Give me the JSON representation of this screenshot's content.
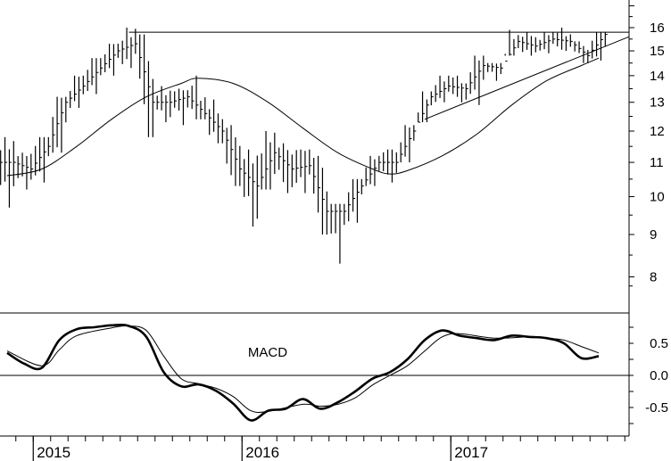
{
  "chart_data": [
    {
      "type": "ohlc",
      "panel": "price",
      "y_scale": "log",
      "ylim": [
        7.6,
        17.2
      ],
      "y_ticks": [
        "16",
        "15",
        "14",
        "13",
        "12",
        "11",
        "10",
        "9",
        "8"
      ],
      "x_year_labels": [
        "2015",
        "2016",
        "2017"
      ],
      "x_range_months": [
        "2014-11",
        "2017-12"
      ],
      "bars_monthly_approx": [
        {
          "m": "2014-11",
          "h": 11.8,
          "l": 9.7,
          "c": 11.0
        },
        {
          "m": "2014-12",
          "h": 11.3,
          "l": 10.2,
          "c": 10.8
        },
        {
          "m": "2015-01",
          "h": 11.8,
          "l": 10.4,
          "c": 11.5
        },
        {
          "m": "2015-02",
          "h": 13.2,
          "l": 11.3,
          "c": 13.0
        },
        {
          "m": "2015-03",
          "h": 14.0,
          "l": 12.8,
          "c": 13.6
        },
        {
          "m": "2015-04",
          "h": 14.7,
          "l": 13.3,
          "c": 14.3
        },
        {
          "m": "2015-05",
          "h": 15.3,
          "l": 14.0,
          "c": 15.0
        },
        {
          "m": "2015-06",
          "h": 16.0,
          "l": 14.3,
          "c": 15.3
        },
        {
          "m": "2015-07",
          "h": 15.7,
          "l": 11.8,
          "c": 13.0
        },
        {
          "m": "2015-08",
          "h": 13.6,
          "l": 12.3,
          "c": 13.0
        },
        {
          "m": "2015-09",
          "h": 13.5,
          "l": 12.2,
          "c": 13.2
        },
        {
          "m": "2015-10",
          "h": 14.0,
          "l": 12.4,
          "c": 12.6
        },
        {
          "m": "2015-11",
          "h": 13.1,
          "l": 11.6,
          "c": 12.0
        },
        {
          "m": "2015-12",
          "h": 12.2,
          "l": 10.3,
          "c": 10.8
        },
        {
          "m": "2016-01",
          "h": 11.4,
          "l": 9.2,
          "c": 10.3
        },
        {
          "m": "2016-02",
          "h": 12.0,
          "l": 10.2,
          "c": 11.3
        },
        {
          "m": "2016-03",
          "h": 11.6,
          "l": 10.1,
          "c": 10.8
        },
        {
          "m": "2016-04",
          "h": 11.4,
          "l": 10.1,
          "c": 10.9
        },
        {
          "m": "2016-05",
          "h": 11.2,
          "l": 9.0,
          "c": 9.6
        },
        {
          "m": "2016-06",
          "h": 9.8,
          "l": 8.3,
          "c": 9.6
        },
        {
          "m": "2016-07",
          "h": 10.5,
          "l": 9.3,
          "c": 10.3
        },
        {
          "m": "2016-08",
          "h": 11.2,
          "l": 10.3,
          "c": 11.0
        },
        {
          "m": "2016-09",
          "h": 11.4,
          "l": 10.4,
          "c": 11.0
        },
        {
          "m": "2016-10",
          "h": 12.2,
          "l": 11.0,
          "c": 12.0
        },
        {
          "m": "2016-11",
          "h": 13.4,
          "l": 12.3,
          "c": 13.2
        },
        {
          "m": "2016-12",
          "h": 14.0,
          "l": 13.0,
          "c": 13.6
        },
        {
          "m": "2017-01",
          "h": 14.0,
          "l": 13.0,
          "c": 13.5
        },
        {
          "m": "2017-02",
          "h": 14.8,
          "l": 12.9,
          "c": 14.4
        },
        {
          "m": "2017-03",
          "h": 14.5,
          "l": 13.8,
          "c": 14.3
        },
        {
          "m": "2017-04",
          "h": 15.9,
          "l": 14.8,
          "c": 15.4
        },
        {
          "m": "2017-05",
          "h": 15.8,
          "l": 14.8,
          "c": 15.2
        },
        {
          "m": "2017-06",
          "h": 15.8,
          "l": 14.9,
          "c": 15.5
        },
        {
          "m": "2017-07",
          "h": 16.0,
          "l": 15.0,
          "c": 15.4
        },
        {
          "m": "2017-08",
          "h": 15.4,
          "l": 14.5,
          "c": 14.8
        },
        {
          "m": "2017-09",
          "h": 15.8,
          "l": 14.6,
          "c": 15.7
        }
      ],
      "moving_average": {
        "points": [
          {
            "m": "2014-11",
            "v": 10.6
          },
          {
            "m": "2015-01",
            "v": 10.8
          },
          {
            "m": "2015-03",
            "v": 11.5
          },
          {
            "m": "2015-05",
            "v": 12.4
          },
          {
            "m": "2015-07",
            "v": 13.2
          },
          {
            "m": "2015-09",
            "v": 13.7
          },
          {
            "m": "2015-10",
            "v": 13.9
          },
          {
            "m": "2015-12",
            "v": 13.7
          },
          {
            "m": "2016-02",
            "v": 13.0
          },
          {
            "m": "2016-04",
            "v": 12.1
          },
          {
            "m": "2016-06",
            "v": 11.3
          },
          {
            "m": "2016-08",
            "v": 10.8
          },
          {
            "m": "2016-09",
            "v": 10.65
          },
          {
            "m": "2016-10",
            "v": 10.75
          },
          {
            "m": "2016-12",
            "v": 11.2
          },
          {
            "m": "2017-02",
            "v": 11.9
          },
          {
            "m": "2017-04",
            "v": 12.9
          },
          {
            "m": "2017-06",
            "v": 13.8
          },
          {
            "m": "2017-08",
            "v": 14.4
          },
          {
            "m": "2017-09",
            "v": 14.7
          }
        ]
      },
      "trendlines": [
        {
          "kind": "resistance",
          "from": {
            "m": "2015-06",
            "v": 15.8
          },
          "to": {
            "m": "2017-12",
            "v": 15.8
          }
        },
        {
          "kind": "support",
          "from": {
            "m": "2016-11",
            "v": 12.4
          },
          "to": {
            "m": "2017-12",
            "v": 15.6
          }
        }
      ]
    },
    {
      "type": "line",
      "panel": "indicator",
      "label": "MACD",
      "ylim": [
        -0.9,
        0.95
      ],
      "y_ticks": [
        "0.5",
        "0.0",
        "-0.5"
      ],
      "zero_line": true,
      "series": [
        {
          "style": "thick",
          "points": [
            {
              "m": "2014-11",
              "v": 0.35
            },
            {
              "m": "2014-12",
              "v": 0.18
            },
            {
              "m": "2015-01",
              "v": 0.12
            },
            {
              "m": "2015-02",
              "v": 0.55
            },
            {
              "m": "2015-03",
              "v": 0.72
            },
            {
              "m": "2015-04",
              "v": 0.75
            },
            {
              "m": "2015-05",
              "v": 0.78
            },
            {
              "m": "2015-06",
              "v": 0.77
            },
            {
              "m": "2015-07",
              "v": 0.6
            },
            {
              "m": "2015-08",
              "v": 0.05
            },
            {
              "m": "2015-09",
              "v": -0.17
            },
            {
              "m": "2015-10",
              "v": -0.14
            },
            {
              "m": "2015-11",
              "v": -0.24
            },
            {
              "m": "2015-12",
              "v": -0.44
            },
            {
              "m": "2016-01",
              "v": -0.7
            },
            {
              "m": "2016-02",
              "v": -0.55
            },
            {
              "m": "2016-03",
              "v": -0.52
            },
            {
              "m": "2016-04",
              "v": -0.37
            },
            {
              "m": "2016-05",
              "v": -0.52
            },
            {
              "m": "2016-06",
              "v": -0.42
            },
            {
              "m": "2016-07",
              "v": -0.25
            },
            {
              "m": "2016-08",
              "v": -0.05
            },
            {
              "m": "2016-09",
              "v": 0.05
            },
            {
              "m": "2016-10",
              "v": 0.25
            },
            {
              "m": "2016-11",
              "v": 0.55
            },
            {
              "m": "2016-12",
              "v": 0.7
            },
            {
              "m": "2017-01",
              "v": 0.62
            },
            {
              "m": "2017-02",
              "v": 0.58
            },
            {
              "m": "2017-03",
              "v": 0.55
            },
            {
              "m": "2017-04",
              "v": 0.62
            },
            {
              "m": "2017-05",
              "v": 0.6
            },
            {
              "m": "2017-06",
              "v": 0.58
            },
            {
              "m": "2017-07",
              "v": 0.5
            },
            {
              "m": "2017-08",
              "v": 0.27
            },
            {
              "m": "2017-09",
              "v": 0.3
            }
          ]
        },
        {
          "style": "thin",
          "points": [
            {
              "m": "2014-11",
              "v": 0.38
            },
            {
              "m": "2015-01",
              "v": 0.15
            },
            {
              "m": "2015-02",
              "v": 0.4
            },
            {
              "m": "2015-03",
              "v": 0.62
            },
            {
              "m": "2015-05",
              "v": 0.74
            },
            {
              "m": "2015-06",
              "v": 0.77
            },
            {
              "m": "2015-07",
              "v": 0.7
            },
            {
              "m": "2015-08",
              "v": 0.3
            },
            {
              "m": "2015-09",
              "v": -0.05
            },
            {
              "m": "2015-10",
              "v": -0.13
            },
            {
              "m": "2015-11",
              "v": -0.2
            },
            {
              "m": "2015-12",
              "v": -0.33
            },
            {
              "m": "2016-01",
              "v": -0.55
            },
            {
              "m": "2016-02",
              "v": -0.56
            },
            {
              "m": "2016-04",
              "v": -0.45
            },
            {
              "m": "2016-05",
              "v": -0.48
            },
            {
              "m": "2016-06",
              "v": -0.45
            },
            {
              "m": "2016-07",
              "v": -0.35
            },
            {
              "m": "2016-08",
              "v": -0.15
            },
            {
              "m": "2016-09",
              "v": 0.0
            },
            {
              "m": "2016-10",
              "v": 0.15
            },
            {
              "m": "2016-11",
              "v": 0.38
            },
            {
              "m": "2016-12",
              "v": 0.6
            },
            {
              "m": "2017-01",
              "v": 0.65
            },
            {
              "m": "2017-03",
              "v": 0.58
            },
            {
              "m": "2017-05",
              "v": 0.6
            },
            {
              "m": "2017-06",
              "v": 0.58
            },
            {
              "m": "2017-07",
              "v": 0.55
            },
            {
              "m": "2017-08",
              "v": 0.45
            },
            {
              "m": "2017-09",
              "v": 0.35
            }
          ]
        }
      ]
    }
  ]
}
